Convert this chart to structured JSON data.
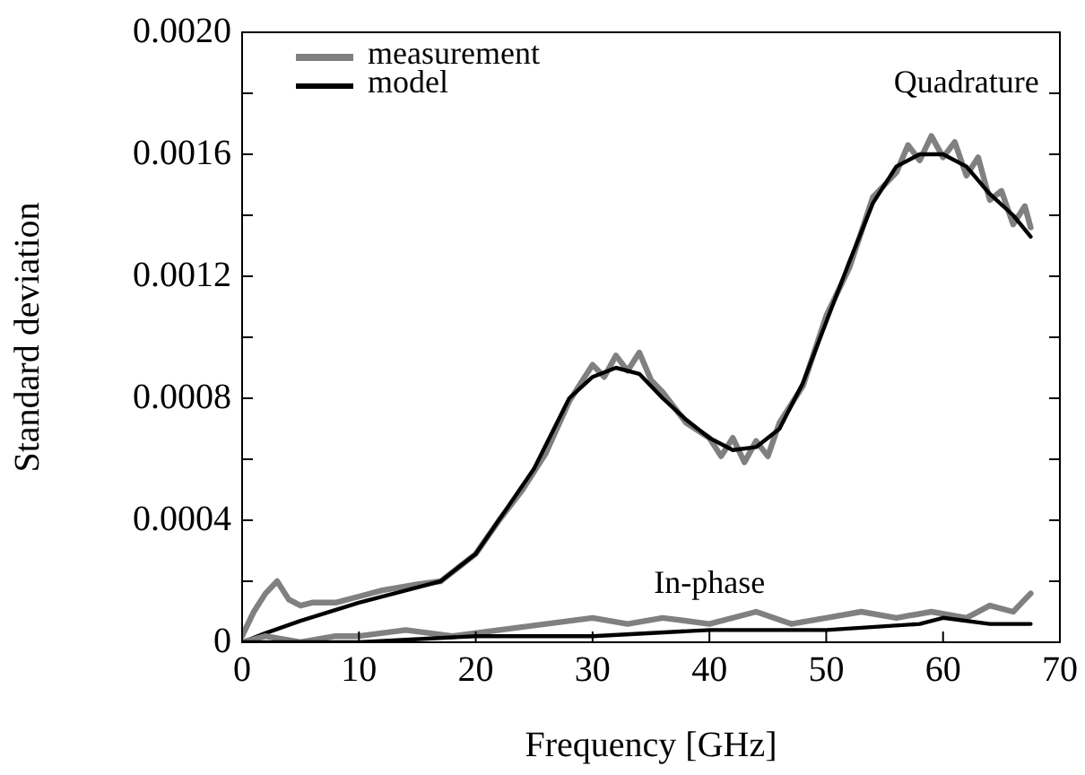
{
  "chart_data": {
    "type": "line",
    "xlabel": "Frequency [GHz]",
    "ylabel": "Standard deviation",
    "xlim": [
      0,
      70
    ],
    "xticks": [
      0,
      10,
      20,
      30,
      40,
      50,
      60,
      70
    ],
    "ylim": [
      0,
      0.002
    ],
    "yticks": [
      0,
      {
        "value": 0.0002,
        "label": null
      },
      0.0004,
      {
        "value": 0.0006,
        "label": null
      },
      0.0008,
      {
        "value": 0.001,
        "label": null
      },
      0.0012,
      {
        "value": 0.0014,
        "label": null
      },
      0.0016,
      {
        "value": 0.0018,
        "label": null
      },
      {
        "value": 0.002,
        "label": "0.0020"
      }
    ],
    "grid": false,
    "legend": "top left",
    "marker": "none",
    "line_style": "solid",
    "annotations": [
      "Quadrature",
      "In-phase"
    ],
    "series": [
      {
        "name": "measurement",
        "color": "#808080",
        "x": [
          0,
          1,
          2,
          3,
          4,
          5,
          6,
          8,
          10,
          12,
          15,
          17,
          20,
          22,
          24,
          26,
          28,
          29,
          30,
          31,
          32,
          33,
          34,
          35,
          36,
          38,
          40,
          41,
          42,
          43,
          44,
          45,
          46,
          48,
          50,
          52,
          54,
          56,
          57,
          58,
          59,
          60,
          61,
          62,
          63,
          64,
          65,
          66,
          67,
          67.5
        ],
        "values": [
          2e-05,
          0.0001,
          0.00016,
          0.0002,
          0.00014,
          0.00012,
          0.00013,
          0.00013,
          0.00015,
          0.00017,
          0.00019,
          0.0002,
          0.00029,
          0.0004,
          0.0005,
          0.00062,
          0.00079,
          0.00085,
          0.00091,
          0.00087,
          0.00094,
          0.00089,
          0.00095,
          0.00086,
          0.00082,
          0.00072,
          0.00067,
          0.00061,
          0.00067,
          0.00059,
          0.00066,
          0.00061,
          0.00072,
          0.00084,
          0.00107,
          0.00123,
          0.00146,
          0.00154,
          0.00163,
          0.00158,
          0.00166,
          0.00159,
          0.00164,
          0.00153,
          0.00159,
          0.00145,
          0.00148,
          0.00137,
          0.00143,
          0.00136
        ]
      },
      {
        "name": "model",
        "color": "#000000",
        "x": [
          0,
          2,
          5,
          10,
          15,
          17,
          20,
          25,
          28,
          30,
          32,
          34,
          36,
          38,
          40,
          42,
          44,
          46,
          48,
          50,
          52,
          54,
          56,
          58,
          60,
          62,
          64,
          66,
          67.5
        ],
        "values": [
          0,
          3e-05,
          7e-05,
          0.00013,
          0.00018,
          0.0002,
          0.00029,
          0.00057,
          0.0008,
          0.00087,
          0.0009,
          0.00088,
          0.0008,
          0.00073,
          0.00067,
          0.00063,
          0.00064,
          0.0007,
          0.00085,
          0.00105,
          0.00125,
          0.00144,
          0.00156,
          0.0016,
          0.0016,
          0.00156,
          0.00147,
          0.0014,
          0.00133
        ]
      },
      {
        "color": "#808080",
        "x": [
          0,
          2,
          5,
          8,
          10,
          14,
          18,
          22,
          26,
          30,
          33,
          36,
          40,
          44,
          47,
          50,
          53,
          56,
          59,
          62,
          64,
          66,
          67,
          67.5
        ],
        "values": [
          0,
          2e-05,
          0,
          2e-05,
          2e-05,
          4e-05,
          2e-05,
          4e-05,
          6e-05,
          8e-05,
          6e-05,
          8e-05,
          6e-05,
          0.0001,
          6e-05,
          8e-05,
          0.0001,
          8e-05,
          0.0001,
          8e-05,
          0.00012,
          0.0001,
          0.00014,
          0.00016
        ]
      },
      {
        "color": "#000000",
        "x": [
          0,
          10,
          20,
          30,
          40,
          50,
          58,
          60,
          64,
          67.5
        ],
        "values": [
          0,
          0,
          2e-05,
          2e-05,
          4e-05,
          4e-05,
          6e-05,
          8e-05,
          6e-05,
          6e-05
        ]
      }
    ]
  }
}
